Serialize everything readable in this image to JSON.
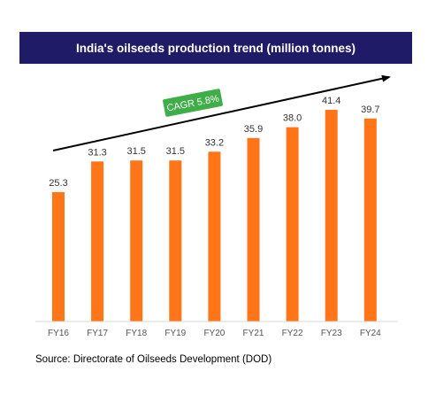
{
  "chart_data": {
    "type": "bar",
    "title": "India's oilseeds production trend (million tonnes)",
    "categories": [
      "FY16",
      "FY17",
      "FY18",
      "FY19",
      "FY20",
      "FY21",
      "FY22",
      "FY23",
      "FY24"
    ],
    "values": [
      25.3,
      31.3,
      31.5,
      31.5,
      33.2,
      35.9,
      38.0,
      41.4,
      39.7
    ],
    "value_labels": [
      "25.3",
      "31.3",
      "31.5",
      "31.5",
      "33.2",
      "35.9",
      "38.0",
      "41.4",
      "39.7"
    ],
    "ylim": [
      0,
      41.4
    ],
    "grid": false,
    "bar_color": "#ff7518",
    "annotation": {
      "text": "CAGR 5.8%",
      "color": "#3fae49"
    }
  },
  "title_bar_color": "#1f1b66",
  "source": "Source: Directorate of Oilseeds Development (DOD)"
}
